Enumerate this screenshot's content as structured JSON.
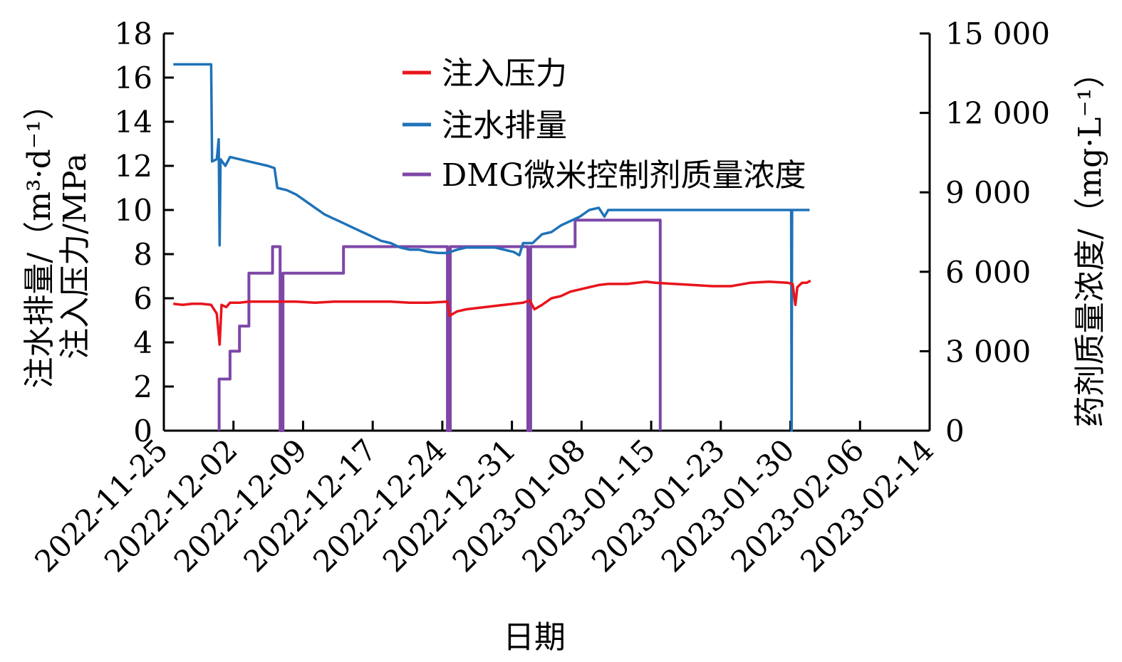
{
  "chart_data": {
    "type": "line",
    "xlabel": "日期",
    "ylabel_left_line1": "注水排量/（m³·d⁻¹）",
    "ylabel_left_line2": "注入压力/MPa",
    "ylabel_right": "药剂质量浓度/（mg·L⁻¹）",
    "x_ticks": [
      "2022-11-25",
      "2022-12-02",
      "2022-12-09",
      "2022-12-17",
      "2022-12-24",
      "2022-12-31",
      "2023-01-08",
      "2023-01-15",
      "2023-01-23",
      "2023-01-30",
      "2023-02-06",
      "2023-02-14"
    ],
    "y_left": {
      "min": 0,
      "max": 18,
      "ticks": [
        "0",
        "2",
        "4",
        "6",
        "8",
        "10",
        "12",
        "14",
        "16",
        "18"
      ]
    },
    "y_right": {
      "min": 0,
      "max": 15000,
      "ticks": [
        "0",
        "3 000",
        "6 000",
        "9 000",
        "12 000",
        "15 000"
      ]
    },
    "legend_position": "top-center",
    "series": [
      {
        "name": "注入压力",
        "axis": "left",
        "color": "#e8141c",
        "points": [
          [
            1,
            5.75
          ],
          [
            2,
            5.7
          ],
          [
            3,
            5.75
          ],
          [
            4,
            5.75
          ],
          [
            5,
            5.7
          ],
          [
            5.6,
            5.3
          ],
          [
            5.9,
            3.9
          ],
          [
            6.1,
            5.7
          ],
          [
            6.6,
            5.6
          ],
          [
            7,
            5.8
          ],
          [
            8,
            5.8
          ],
          [
            9,
            5.85
          ],
          [
            10,
            5.85
          ],
          [
            12,
            5.85
          ],
          [
            14,
            5.85
          ],
          [
            16,
            5.8
          ],
          [
            18,
            5.85
          ],
          [
            20,
            5.85
          ],
          [
            22,
            5.85
          ],
          [
            24,
            5.85
          ],
          [
            26,
            5.8
          ],
          [
            28,
            5.8
          ],
          [
            30,
            5.85
          ],
          [
            30.2,
            5.2
          ],
          [
            31,
            5.4
          ],
          [
            32,
            5.5
          ],
          [
            34,
            5.6
          ],
          [
            36,
            5.7
          ],
          [
            37,
            5.75
          ],
          [
            38,
            5.8
          ],
          [
            38.7,
            5.9
          ],
          [
            39.2,
            5.5
          ],
          [
            40,
            5.7
          ],
          [
            41,
            6.0
          ],
          [
            42,
            6.1
          ],
          [
            43,
            6.3
          ],
          [
            44,
            6.4
          ],
          [
            45,
            6.5
          ],
          [
            46,
            6.6
          ],
          [
            47,
            6.65
          ],
          [
            48,
            6.65
          ],
          [
            49,
            6.65
          ],
          [
            50,
            6.7
          ],
          [
            51,
            6.75
          ],
          [
            52,
            6.7
          ],
          [
            54,
            6.65
          ],
          [
            56,
            6.6
          ],
          [
            58,
            6.55
          ],
          [
            60,
            6.55
          ],
          [
            62,
            6.7
          ],
          [
            64,
            6.75
          ],
          [
            66,
            6.7
          ],
          [
            66.5,
            6.65
          ],
          [
            66.8,
            5.7
          ],
          [
            67,
            6.5
          ],
          [
            67.5,
            6.7
          ],
          [
            68,
            6.7
          ],
          [
            68.4,
            6.8
          ]
        ]
      },
      {
        "name": "注水排量",
        "axis": "left",
        "color": "#1f72b8",
        "points": [
          [
            1,
            16.6
          ],
          [
            5,
            16.6
          ],
          [
            5.1,
            12.2
          ],
          [
            5.6,
            12.3
          ],
          [
            5.8,
            13.2
          ],
          [
            5.9,
            8.4
          ],
          [
            6.0,
            12.3
          ],
          [
            6.5,
            12.0
          ],
          [
            7,
            12.4
          ],
          [
            8,
            12.3
          ],
          [
            9,
            12.2
          ],
          [
            10,
            12.1
          ],
          [
            11,
            12.0
          ],
          [
            11.7,
            11.9
          ],
          [
            12,
            11.0
          ],
          [
            13,
            10.9
          ],
          [
            14,
            10.7
          ],
          [
            15,
            10.4
          ],
          [
            16,
            10.1
          ],
          [
            17,
            9.8
          ],
          [
            18,
            9.6
          ],
          [
            19,
            9.4
          ],
          [
            20,
            9.2
          ],
          [
            21,
            9.0
          ],
          [
            22,
            8.8
          ],
          [
            23,
            8.6
          ],
          [
            24,
            8.5
          ],
          [
            25,
            8.3
          ],
          [
            26,
            8.2
          ],
          [
            27,
            8.2
          ],
          [
            28,
            8.1
          ],
          [
            29,
            8.05
          ],
          [
            30,
            8.05
          ],
          [
            31,
            8.2
          ],
          [
            32,
            8.3
          ],
          [
            34,
            8.3
          ],
          [
            35,
            8.3
          ],
          [
            36,
            8.2
          ],
          [
            37,
            8.1
          ],
          [
            37.6,
            7.95
          ],
          [
            38,
            8.5
          ],
          [
            39,
            8.5
          ],
          [
            40,
            8.9
          ],
          [
            41,
            9.0
          ],
          [
            42,
            9.3
          ],
          [
            43,
            9.5
          ],
          [
            44,
            9.7
          ],
          [
            45,
            10.0
          ],
          [
            46,
            10.1
          ],
          [
            46.6,
            9.7
          ],
          [
            47,
            10.0
          ],
          [
            50,
            10.0
          ],
          [
            55,
            10.0
          ],
          [
            60,
            10.0
          ],
          [
            66,
            10.0
          ],
          [
            66.35,
            10.0
          ],
          [
            66.4,
            0
          ],
          [
            66.45,
            10.0
          ],
          [
            68.3,
            10.0
          ]
        ]
      },
      {
        "name": "DMG微米控制剂质量浓度",
        "axis": "right",
        "color": "#7d46a7",
        "points": [
          [
            5.85,
            0
          ],
          [
            5.85,
            1950
          ],
          [
            7,
            1950
          ],
          [
            7,
            3000
          ],
          [
            8,
            3000
          ],
          [
            8,
            3950
          ],
          [
            9,
            3950
          ],
          [
            9,
            5950
          ],
          [
            11.5,
            5950
          ],
          [
            11.5,
            6950
          ],
          [
            12.3,
            6950
          ],
          [
            12.3,
            0
          ],
          [
            12.6,
            0
          ],
          [
            12.6,
            5950
          ],
          [
            19,
            5950
          ],
          [
            19,
            6950
          ],
          [
            30,
            6950
          ],
          [
            30,
            0
          ],
          [
            30.3,
            0
          ],
          [
            30.3,
            6950
          ],
          [
            38.5,
            6950
          ],
          [
            38.5,
            0
          ],
          [
            38.8,
            0
          ],
          [
            38.8,
            6950
          ],
          [
            43.5,
            6950
          ],
          [
            43.5,
            7950
          ],
          [
            52.5,
            7950
          ],
          [
            52.5,
            0
          ]
        ]
      }
    ]
  }
}
